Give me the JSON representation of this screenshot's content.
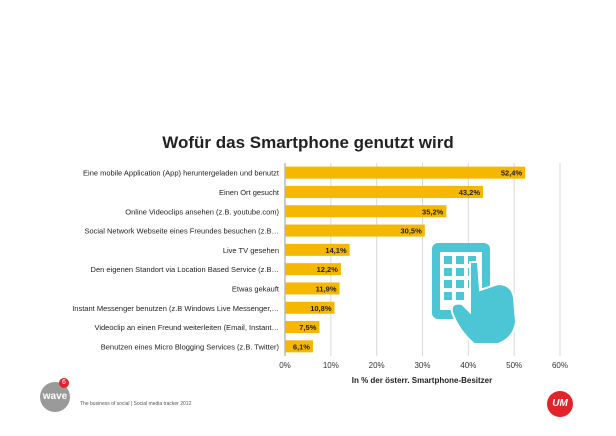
{
  "chart_data": {
    "type": "bar",
    "orientation": "horizontal",
    "title": "Wofür das Smartphone genutzt wird",
    "categories": [
      "Eine mobile Application (App) heruntergeladen und benutzt",
      "Einen Ort gesucht",
      "Online Videoclips ansehen (z.B. youtube.com)",
      "Social Network Webseite eines Freundes besuchen (z.B…",
      "Live TV gesehen",
      "Den eigenen Standort via Location Based Service (z.B…",
      "Etwas gekauft",
      "Instant Messenger benutzen (z.B Windows Live Messenger,…",
      "Videoclip an einen Freund weiterleiten (Email, Instant…",
      "Benutzen eines Micro Blogging Services (z.B. Twitter)"
    ],
    "values": [
      52.4,
      43.2,
      35.2,
      30.5,
      14.1,
      12.2,
      11.9,
      10.8,
      7.5,
      6.1
    ],
    "data_labels": [
      "52,4%",
      "43,2%",
      "35,2%",
      "30,5%",
      "14,1%",
      "12,2%",
      "11,9%",
      "10,8%",
      "7,5%",
      "6,1%"
    ],
    "xlim": [
      0,
      60
    ],
    "ticks": [
      0,
      10,
      20,
      30,
      40,
      50,
      60
    ],
    "tick_labels": [
      "0%",
      "10%",
      "20%",
      "30%",
      "40%",
      "50%",
      "60%"
    ],
    "xlabel": "In % der österr. Smartphone-Besitzer",
    "ylabel": "",
    "grid": true,
    "bar_color": "#f5b700"
  },
  "footer": {
    "logo_text": "wave",
    "badge_text": "6",
    "source_text": "The business of social | Social media tracker 2012",
    "brand_logo": "UM"
  },
  "colors": {
    "bar": "#f5b700",
    "grid": "#d9d9d9",
    "icon": "#4cc6d4",
    "brand_red": "#e2232a"
  },
  "icons": [
    "smartphone-touch-icon"
  ]
}
